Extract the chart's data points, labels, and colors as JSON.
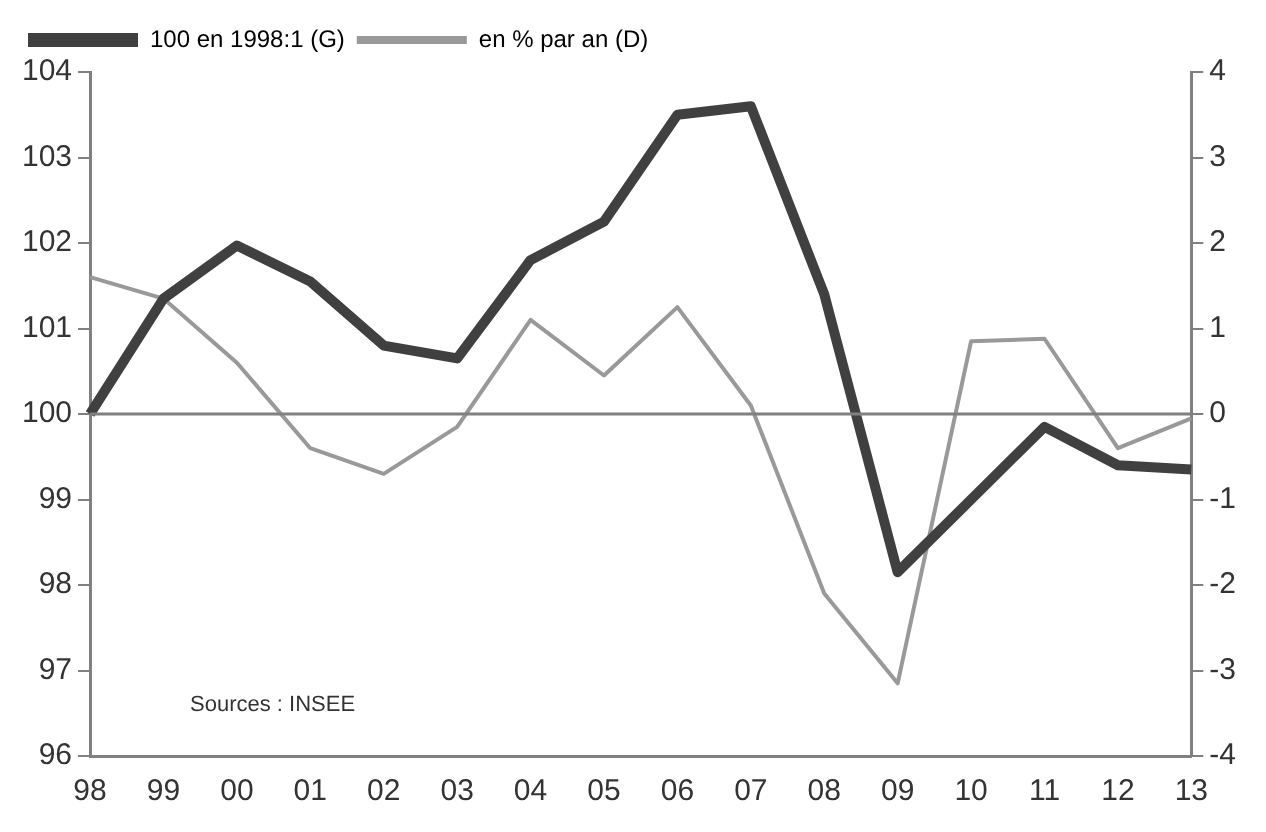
{
  "chart_data": {
    "type": "line",
    "categories": [
      "98",
      "99",
      "00",
      "01",
      "02",
      "03",
      "04",
      "05",
      "06",
      "07",
      "08",
      "09",
      "10",
      "11",
      "12",
      "13"
    ],
    "series": [
      {
        "name": "100 en 1998:1 (G)",
        "color": "#404040",
        "values": [
          100,
          101.35,
          101.97,
          101.55,
          100.8,
          100.65,
          101.8,
          102.25,
          103.5,
          103.6,
          101.4,
          98.15,
          99.0,
          99.85,
          99.4,
          99.35
        ]
      },
      {
        "name": "en % par an (D)",
        "color": "#999999",
        "axis": "y2",
        "values": [
          1.6,
          1.35,
          0.6,
          -0.4,
          -0.7,
          -0.15,
          1.1,
          0.45,
          1.25,
          0.1,
          -2.1,
          -3.15,
          0.85,
          0.88,
          -0.4,
          -0.05
        ]
      }
    ],
    "ylim": [
      96,
      104
    ],
    "yticks": [
      96,
      97,
      98,
      99,
      100,
      101,
      102,
      103,
      104
    ],
    "y2lim": [
      -4,
      4
    ],
    "y2ticks": [
      -4,
      -3,
      -2,
      -1,
      0,
      1,
      2,
      3,
      4
    ],
    "ref_lines": [
      {
        "axis": "y",
        "value": 100,
        "color": "#808080"
      }
    ],
    "annotations": [
      "Sources : INSEE"
    ],
    "legend": "top left",
    "grid": false,
    "marker": "none",
    "line_style": "solid"
  }
}
